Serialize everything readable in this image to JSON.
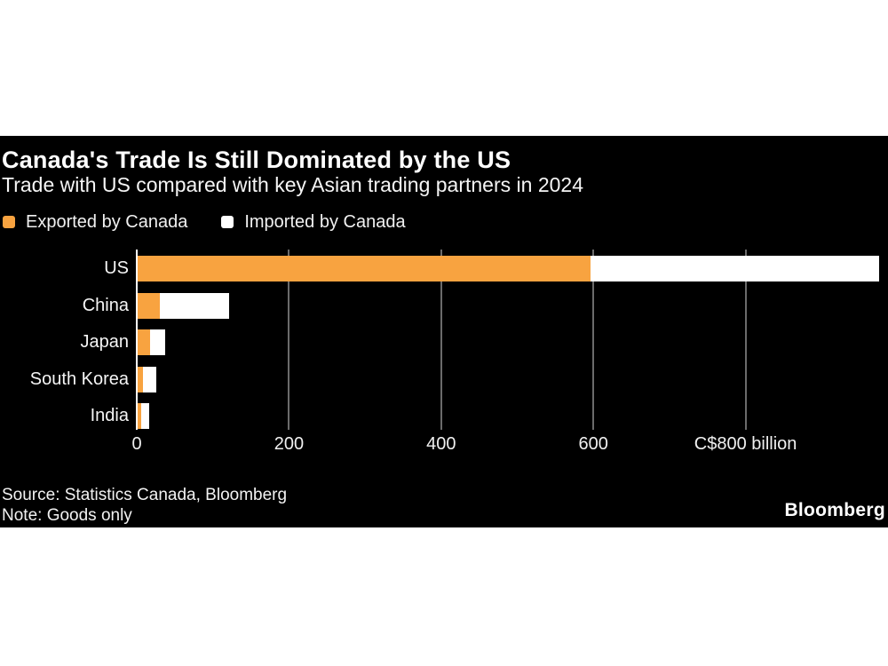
{
  "chart": {
    "title": "Canada's Trade Is Still Dominated by the US",
    "subtitle": "Trade with US compared with key Asian trading partners in 2024",
    "legend": [
      {
        "label": "Exported by Canada",
        "color": "#F8A340"
      },
      {
        "label": "Imported by Canada",
        "color": "#FFFFFF"
      }
    ],
    "source": "Source: Statistics Canada, Bloomberg",
    "note": "Note: Goods only",
    "brand": "Bloomberg",
    "colors": {
      "background": "#000000",
      "page_margin": "#FFFFFF",
      "gridline": "#6B6B6B",
      "axis_line": "#FFFFFF",
      "text": "#F5F5F5"
    }
  },
  "chart_data": {
    "type": "bar",
    "orientation": "horizontal",
    "stacked": true,
    "title": "Canada's Trade Is Still Dominated by the US",
    "subtitle": "Trade with US compared with key Asian trading partners in 2024",
    "unit": "C$ billion",
    "categories": [
      "US",
      "China",
      "Japan",
      "South Korea",
      "India"
    ],
    "series": [
      {
        "name": "Exported by Canada",
        "color": "#F8A340",
        "values": [
          596,
          30,
          17,
          8,
          6
        ]
      },
      {
        "name": "Imported by Canada",
        "color": "#FFFFFF",
        "values": [
          380,
          91,
          20,
          18,
          10
        ]
      }
    ],
    "x_ticks": [
      {
        "value": 0,
        "label": "0"
      },
      {
        "value": 200,
        "label": "200"
      },
      {
        "value": 400,
        "label": "400"
      },
      {
        "value": 600,
        "label": "600"
      },
      {
        "value": 800,
        "label": "C$800 billion"
      }
    ],
    "xlim": [
      0,
      987
    ],
    "grid": true,
    "legend_position": "top-left"
  }
}
